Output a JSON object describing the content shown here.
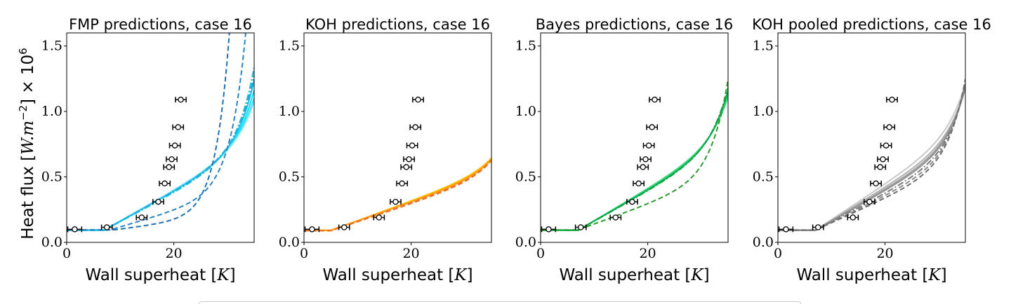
{
  "chart_data": [
    {
      "type": "line",
      "title": "FMP predictions, case 16",
      "xlabel": "Wall superheat [K]",
      "ylabel": "Heat flux [W.m^-2] × 10^6",
      "xlim": [
        0,
        35
      ],
      "ylim": [
        0,
        1.6
      ],
      "xticks": [
        "0",
        "20"
      ],
      "yticks": [
        "0.0",
        "0.5",
        "1.0",
        "1.5"
      ],
      "grid": false,
      "series": [
        {
          "style": "solid",
          "color": "#00e5ff",
          "x0": 7.0,
          "a": 0.092,
          "b": 0.0228,
          "c": 0.305
        },
        {
          "style": "solid",
          "color": "#3fd7ff",
          "x0": 7.0,
          "a": 0.094,
          "b": 0.0231,
          "c": 0.3
        },
        {
          "style": "solid",
          "color": "#7ae8ff",
          "x0": 7.0,
          "a": 0.09,
          "b": 0.0236,
          "c": 0.297
        },
        {
          "style": "solid",
          "color": "#19c3e8",
          "x0": 7.0,
          "a": 0.095,
          "b": 0.0224,
          "c": 0.31
        },
        {
          "style": "dashdot",
          "color": "#1aa6d4",
          "x0": 7.0,
          "a": 0.093,
          "b": 0.0226,
          "c": 0.312
        },
        {
          "style": "dashdot",
          "color": "#22b8e0",
          "x0": 7.0,
          "a": 0.092,
          "b": 0.0219,
          "c": 0.316
        },
        {
          "style": "dashed",
          "color": "#1f6fb4",
          "x0": 9.0,
          "a": 0.096,
          "b": 0.0052,
          "c": 0.39
        },
        {
          "style": "dashed",
          "color": "#2a85c2",
          "x0": 8.0,
          "a": 0.094,
          "b": 0.012,
          "c": 0.35
        }
      ]
    },
    {
      "type": "line",
      "title": "KOH predictions, case 16",
      "xlabel": "Wall superheat [K]",
      "ylabel": "",
      "xlim": [
        0,
        35
      ],
      "ylim": [
        0,
        1.6
      ],
      "xticks": [
        "0",
        "20"
      ],
      "yticks": [
        "0.0",
        "0.5",
        "1.0",
        "1.5"
      ],
      "grid": false,
      "series": [
        {
          "style": "solid",
          "color": "#ffd400",
          "x0": 5.0,
          "a": 0.09,
          "b": 0.015,
          "c": 0.264
        },
        {
          "style": "solid",
          "color": "#ffbf00",
          "x0": 5.0,
          "a": 0.092,
          "b": 0.0148,
          "c": 0.265
        },
        {
          "style": "solid",
          "color": "#ffa500",
          "x0": 5.0,
          "a": 0.091,
          "b": 0.0145,
          "c": 0.266
        },
        {
          "style": "solid",
          "color": "#ff9a1a",
          "x0": 5.0,
          "a": 0.093,
          "b": 0.0142,
          "c": 0.267
        },
        {
          "style": "dashed",
          "color": "#f07a20",
          "x0": 5.0,
          "a": 0.09,
          "b": 0.014,
          "c": 0.268
        },
        {
          "style": "dashed",
          "color": "#e8732a",
          "x0": 5.0,
          "a": 0.088,
          "b": 0.0138,
          "c": 0.269
        }
      ]
    },
    {
      "type": "line",
      "title": "Bayes predictions, case 16",
      "xlabel": "Wall superheat [K]",
      "ylabel": "",
      "xlim": [
        0,
        35
      ],
      "ylim": [
        0,
        1.6
      ],
      "xticks": [
        "0",
        "20"
      ],
      "yticks": [
        "0.0",
        "0.5",
        "1.0",
        "1.5"
      ],
      "grid": false,
      "series": [
        {
          "style": "solid",
          "color": "#00e070",
          "x0": 7.0,
          "a": 0.092,
          "b": 0.024,
          "c": 0.3
        },
        {
          "style": "solid",
          "color": "#20c860",
          "x0": 7.0,
          "a": 0.093,
          "b": 0.0236,
          "c": 0.302
        },
        {
          "style": "solid",
          "color": "#40d880",
          "x0": 7.0,
          "a": 0.091,
          "b": 0.0244,
          "c": 0.298
        },
        {
          "style": "solid",
          "color": "#00b050",
          "x0": 7.0,
          "a": 0.094,
          "b": 0.0232,
          "c": 0.304
        },
        {
          "style": "dashdot",
          "color": "#10a040",
          "x0": 7.0,
          "a": 0.092,
          "b": 0.023,
          "c": 0.306
        },
        {
          "style": "dashed",
          "color": "#2e9b2e",
          "x0": 7.0,
          "a": 0.095,
          "b": 0.015,
          "c": 0.32
        }
      ]
    },
    {
      "type": "line",
      "title": "KOH pooled predictions, case 16",
      "xlabel": "Wall superheat [K]",
      "ylabel": "",
      "xlim": [
        0,
        35
      ],
      "ylim": [
        0,
        1.6
      ],
      "xticks": [
        "0",
        "20"
      ],
      "yticks": [
        "0.0",
        "0.5",
        "1.0",
        "1.5"
      ],
      "grid": false,
      "series": [
        {
          "style": "solid",
          "color": "#c8c8c8",
          "x0": 7.0,
          "a": 0.092,
          "b": 0.027,
          "c": 0.3
        },
        {
          "style": "solid",
          "color": "#b0b0b0",
          "x0": 7.0,
          "a": 0.093,
          "b": 0.025,
          "c": 0.302
        },
        {
          "style": "solid",
          "color": "#a0a0a0",
          "x0": 7.0,
          "a": 0.091,
          "b": 0.024,
          "c": 0.304
        },
        {
          "style": "solid",
          "color": "#909090",
          "x0": 7.0,
          "a": 0.094,
          "b": 0.023,
          "c": 0.306
        },
        {
          "style": "dashdot",
          "color": "#7a7a7a",
          "x0": 7.0,
          "a": 0.092,
          "b": 0.0215,
          "c": 0.31
        },
        {
          "style": "dashed",
          "color": "#8a8a8a",
          "x0": 7.0,
          "a": 0.093,
          "b": 0.02,
          "c": 0.313
        },
        {
          "style": "dashed",
          "color": "#6e6e6e",
          "x0": 7.0,
          "a": 0.094,
          "b": 0.0185,
          "c": 0.316
        }
      ]
    }
  ],
  "experiment_points": [
    {
      "x": 1.5,
      "y": 0.1,
      "xerr": 1.3
    },
    {
      "x": 7.5,
      "y": 0.115,
      "xerr": 1.0
    },
    {
      "x": 14.0,
      "y": 0.19,
      "xerr": 1.0
    },
    {
      "x": 17.1,
      "y": 0.31,
      "xerr": 1.0
    },
    {
      "x": 18.3,
      "y": 0.45,
      "xerr": 1.0
    },
    {
      "x": 19.1,
      "y": 0.575,
      "xerr": 1.0
    },
    {
      "x": 19.6,
      "y": 0.635,
      "xerr": 1.0
    },
    {
      "x": 20.2,
      "y": 0.74,
      "xerr": 1.0
    },
    {
      "x": 20.8,
      "y": 0.88,
      "xerr": 1.0
    },
    {
      "x": 21.3,
      "y": 1.09,
      "xerr": 1.0
    }
  ]
}
